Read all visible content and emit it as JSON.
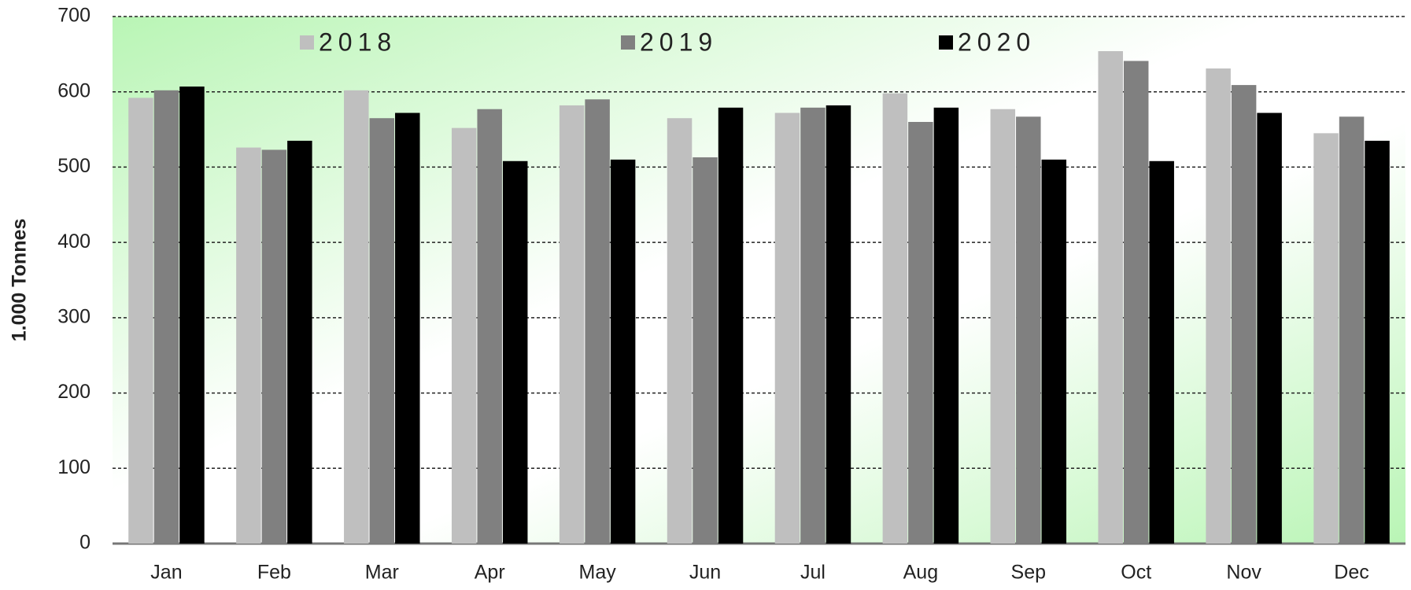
{
  "chart_data": {
    "type": "bar",
    "y_label": "1.000 Tonnes",
    "categories": [
      "Jan",
      "Feb",
      "Mar",
      "Apr",
      "May",
      "Jun",
      "Jul",
      "Aug",
      "Sep",
      "Oct",
      "Nov",
      "Dec"
    ],
    "series": [
      {
        "name": "2018",
        "color": "#bfbfbf",
        "values": [
          592,
          526,
          602,
          552,
          582,
          565,
          572,
          598,
          577,
          654,
          631,
          545
        ]
      },
      {
        "name": "2019",
        "color": "#808080",
        "values": [
          602,
          523,
          565,
          577,
          590,
          513,
          579,
          560,
          567,
          641,
          609,
          567
        ]
      },
      {
        "name": "2020",
        "color": "#000000",
        "values": [
          607,
          535,
          572,
          508,
          510,
          579,
          582,
          579,
          510,
          508,
          572,
          535
        ]
      }
    ],
    "ylim": [
      0,
      700
    ],
    "yticks": [
      0,
      100,
      200,
      300,
      400,
      500,
      600,
      700
    ],
    "grid": true
  }
}
